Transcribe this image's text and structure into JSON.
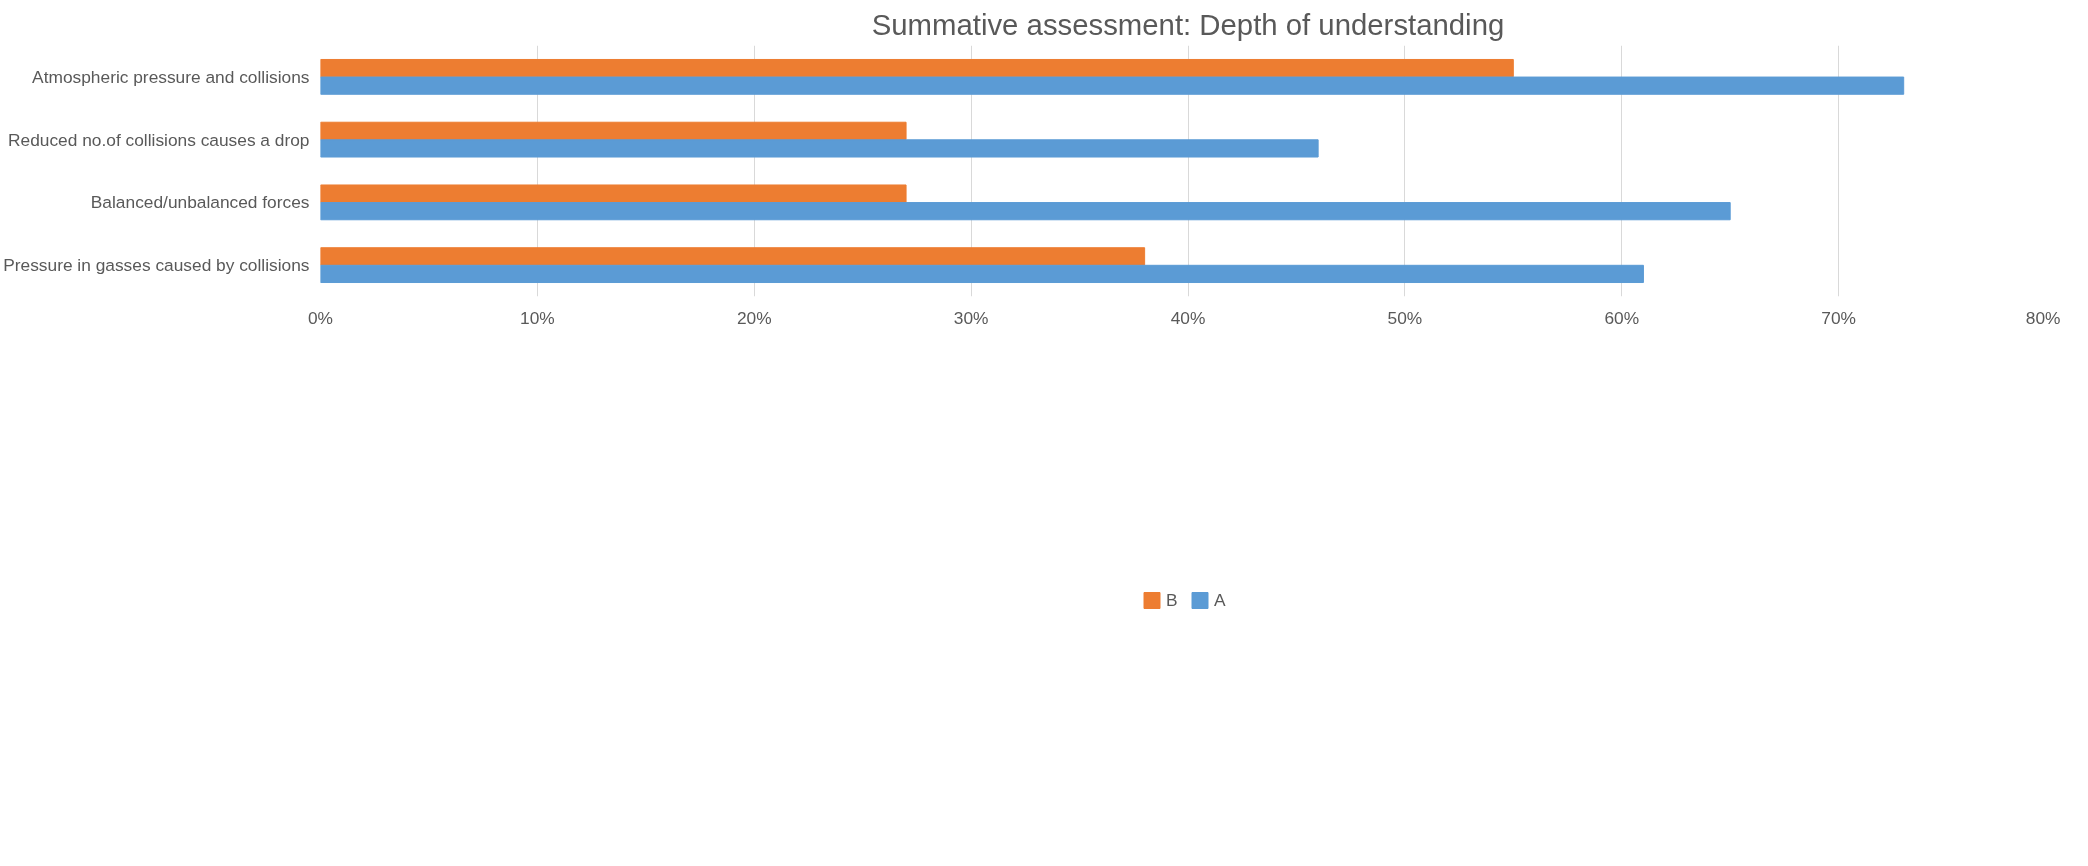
{
  "chart_data": {
    "type": "bar",
    "orientation": "horizontal",
    "title": "Summative assessment: Depth of understanding",
    "categories": [
      "Atmospheric pressure and collisions",
      "Reduced no.of collisions causes a drop",
      "Balanced/unbalanced forces",
      "Pressure in gasses caused by collisions"
    ],
    "series": [
      {
        "name": "B",
        "color": "#ed7d31",
        "values": [
          0.55,
          0.27,
          0.27,
          0.38
        ]
      },
      {
        "name": "A",
        "color": "#5b9bd5",
        "values": [
          0.73,
          0.46,
          0.65,
          0.61
        ]
      }
    ],
    "xlim": [
      0,
      0.8
    ],
    "xticks": [
      {
        "value": 0,
        "label": "0%"
      },
      {
        "value": 0.1,
        "label": "10%"
      },
      {
        "value": 0.2,
        "label": "20%"
      },
      {
        "value": 0.3,
        "label": "30%"
      },
      {
        "value": 0.4,
        "label": "40%"
      },
      {
        "value": 0.5,
        "label": "50%"
      },
      {
        "value": 0.6,
        "label": "60%"
      },
      {
        "value": 0.7,
        "label": "70%"
      },
      {
        "value": 0.8,
        "label": "80%"
      }
    ],
    "grid": "x",
    "legend": "bottom"
  }
}
